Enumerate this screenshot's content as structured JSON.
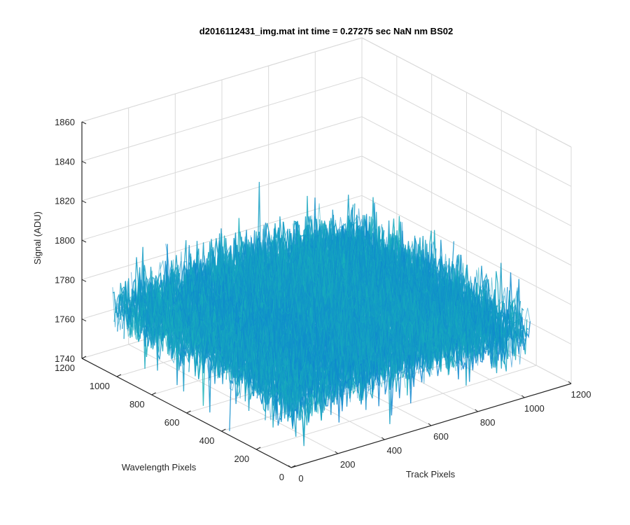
{
  "chart_data": {
    "type": "surface",
    "title": "d2016112431_img.mat int time = 0.27275 sec  NaN nm BS02",
    "xlabel": "Track Pixels",
    "ylabel": "Wavelength Pixels",
    "zlabel": "Signal (ADU)",
    "xlim": [
      0,
      1200
    ],
    "ylim": [
      0,
      1200
    ],
    "zlim": [
      1740,
      1860
    ],
    "x_ticks": [
      "0",
      "200",
      "400",
      "600",
      "800",
      "1000",
      "1200"
    ],
    "y_ticks": [
      "0",
      "200",
      "400",
      "600",
      "800",
      "1000",
      "1200"
    ],
    "z_ticks": [
      "1740",
      "1760",
      "1780",
      "1800",
      "1820",
      "1840",
      "1860"
    ],
    "grid": true,
    "colormap": "parula",
    "surface_extent": {
      "x": [
        0,
        1024
      ],
      "y": [
        0,
        1024
      ]
    },
    "signal_mean": 1772,
    "signal_range": [
      1740,
      1848
    ],
    "colors": {
      "axis": "#262626",
      "grid": "#d9d9d9",
      "low": "#0a72d8",
      "mid": "#1ab6b8",
      "high": "#d4d03e"
    }
  }
}
